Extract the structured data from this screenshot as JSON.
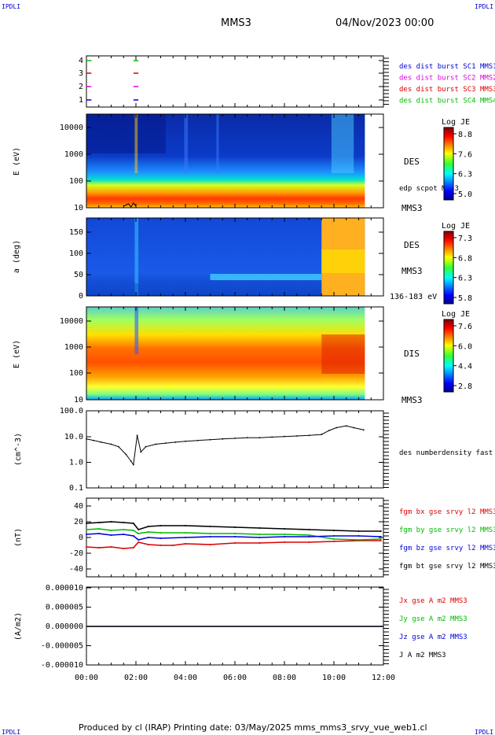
{
  "header": {
    "corner_label": "IPDLI",
    "title": "MMS3",
    "datetime": "04/Nov/2023 00:00"
  },
  "footer": {
    "text": "Produced by cl (IRAP)   Printing date: 03/May/2025   mms_mms3_srvy_vue_web1.cl"
  },
  "colors": {
    "red": "#dd0000",
    "green": "#00bb00",
    "blue": "#0000dd",
    "magenta": "#dd00dd",
    "black": "#000000"
  },
  "chart_data": [
    {
      "type": "scatter",
      "panel": "burst-availability",
      "x_ticks": [
        "00:00",
        "02:00",
        "04:00",
        "06:00",
        "08:00",
        "10:00",
        "12:00"
      ],
      "y_ticks": [
        "1",
        "2",
        "3",
        "4"
      ],
      "legend": [
        {
          "name": "des dist burst SC1 MMS1",
          "color": "#0000dd"
        },
        {
          "name": "des dist burst SC2 MMS2",
          "color": "#dd00dd"
        },
        {
          "name": "des dist burst SC3 MMS3",
          "color": "#dd0000"
        },
        {
          "name": "des dist burst SC4 MMS4",
          "color": "#00bb00"
        }
      ],
      "marks": [
        {
          "x": [
            0.0,
            0.2
          ],
          "y": 4,
          "color": "#00bb00"
        },
        {
          "x": [
            1.9,
            2.1
          ],
          "y": 4,
          "color": "#00bb00"
        },
        {
          "x": [
            0.0,
            0.2
          ],
          "y": 3,
          "color": "#dd0000"
        },
        {
          "x": [
            1.9,
            2.1
          ],
          "y": 3,
          "color": "#dd0000"
        },
        {
          "x": [
            0.0,
            0.2
          ],
          "y": 2,
          "color": "#dd00dd"
        },
        {
          "x": [
            1.9,
            2.1
          ],
          "y": 2,
          "color": "#dd00dd"
        },
        {
          "x": [
            0.0,
            0.2
          ],
          "y": 1,
          "color": "#0000dd"
        },
        {
          "x": [
            1.9,
            2.1
          ],
          "y": 1,
          "color": "#0000dd"
        }
      ]
    },
    {
      "type": "heatmap",
      "panel": "des-energy",
      "ylabel": "E (eV)",
      "y_ticks": [
        "10",
        "100",
        "1000",
        "10000"
      ],
      "label_main": "DES",
      "label_overlay": "edp scpot MMS3",
      "label_sc": "MMS3",
      "colorbar": {
        "title": "Log JE",
        "ticks": [
          "8.8",
          "7.6",
          "6.3",
          "5.0"
        ]
      }
    },
    {
      "type": "heatmap",
      "panel": "des-pitch",
      "ylabel": "a (deg)",
      "y_ticks": [
        "0",
        "50",
        "100",
        "150"
      ],
      "label_main": "DES",
      "label_sc": "MMS3",
      "label_energy": "136-183 eV",
      "colorbar": {
        "title": "Log JE",
        "ticks": [
          "7.3",
          "6.8",
          "6.3",
          "5.8"
        ]
      }
    },
    {
      "type": "heatmap",
      "panel": "dis-energy",
      "ylabel": "E (eV)",
      "y_ticks": [
        "10",
        "100",
        "1000",
        "10000"
      ],
      "label_main": "DIS",
      "label_sc": "MMS3",
      "colorbar": {
        "title": "Log JE",
        "ticks": [
          "7.6",
          "6.0",
          "4.4",
          "2.8"
        ]
      }
    },
    {
      "type": "line",
      "panel": "density",
      "ylabel": "(cm^-3)",
      "y_ticks": [
        "0.1",
        "1.0",
        "10.0",
        "100.0"
      ],
      "ylim": [
        0.1,
        100
      ],
      "series": [
        {
          "name": "des numberdensity fast M",
          "color": "#000000",
          "x": [
            0.0,
            0.3,
            0.6,
            1.0,
            1.3,
            1.6,
            1.8,
            1.9,
            2.05,
            2.2,
            2.4,
            2.8,
            3.2,
            3.6,
            4.0,
            4.5,
            5.0,
            5.5,
            6.0,
            6.5,
            7.0,
            7.5,
            8.0,
            8.5,
            9.0,
            9.5,
            9.8,
            10.1,
            10.5,
            10.8,
            11.2
          ],
          "y": [
            8,
            7,
            6,
            5,
            4,
            2,
            1.1,
            0.8,
            11,
            2.5,
            4,
            5,
            5.5,
            6,
            6.5,
            7,
            7.5,
            8,
            8.5,
            9,
            9,
            9.5,
            10,
            10.5,
            11,
            12,
            17,
            22,
            26,
            22,
            18
          ]
        }
      ]
    },
    {
      "type": "line",
      "panel": "magnetic-field",
      "ylabel": "(nT)",
      "y_ticks": [
        "-40",
        "-20",
        "0",
        "20",
        "40"
      ],
      "ylim": [
        -50,
        50
      ],
      "series": [
        {
          "name": "fgm bx gse srvy l2 MMS3",
          "color": "#dd0000",
          "x": [
            0.0,
            0.5,
            1.0,
            1.5,
            1.9,
            2.1,
            2.5,
            3.0,
            3.5,
            4.0,
            5.0,
            6.0,
            7.0,
            8.0,
            9.0,
            10.0,
            11.0,
            11.9
          ],
          "y": [
            -12,
            -13,
            -12,
            -14,
            -13,
            -6,
            -9,
            -10,
            -10,
            -8,
            -9,
            -7,
            -7,
            -6,
            -6,
            -5,
            -4,
            -4
          ]
        },
        {
          "name": "fgm by gse srvy l2 MMS3",
          "color": "#00bb00",
          "x": [
            0.0,
            0.5,
            1.0,
            1.5,
            1.9,
            2.1,
            2.5,
            3.0,
            4.0,
            5.0,
            6.0,
            7.0,
            8.0,
            9.0,
            10.0,
            11.0,
            11.9
          ],
          "y": [
            10,
            11,
            9,
            10,
            9,
            5,
            7,
            6,
            6,
            5,
            5,
            4,
            4,
            3,
            -2,
            -3,
            -2
          ]
        },
        {
          "name": "fgm bz gse srvy l2 MMS3",
          "color": "#0000dd",
          "x": [
            0.0,
            0.5,
            1.0,
            1.5,
            1.9,
            2.1,
            2.5,
            3.0,
            4.0,
            5.0,
            6.0,
            7.0,
            8.0,
            9.0,
            10.0,
            11.0,
            11.9
          ],
          "y": [
            4,
            5,
            3,
            4,
            2,
            -3,
            0,
            -1,
            0,
            1,
            1,
            0,
            1,
            1,
            2,
            2,
            1
          ]
        },
        {
          "name": "fgm bt gse srvy l2 MMS3",
          "color": "#000000",
          "x": [
            0.0,
            0.5,
            1.0,
            1.5,
            1.9,
            2.1,
            2.5,
            3.0,
            4.0,
            5.0,
            6.0,
            7.0,
            8.0,
            9.0,
            10.0,
            11.0,
            11.9
          ],
          "y": [
            18,
            19,
            20,
            19,
            18,
            10,
            14,
            15,
            15,
            14,
            13,
            12,
            11,
            10,
            9,
            8,
            8
          ]
        }
      ]
    },
    {
      "type": "line",
      "panel": "current-density",
      "ylabel": "(A/m2)",
      "y_ticks": [
        "-0.000010",
        "-0.000005",
        "0.000000",
        "0.000005",
        "0.000010"
      ],
      "ylim": [
        -1e-05,
        1e-05
      ],
      "series": [
        {
          "name": "Jx gse A m2 MMS3",
          "color": "#dd0000",
          "x": [
            0.0,
            12.0
          ],
          "y": [
            0.0,
            0.0
          ]
        },
        {
          "name": "Jy gse A m2 MMS3",
          "color": "#00bb00",
          "x": [
            0.0,
            12.0
          ],
          "y": [
            0.0,
            0.0
          ]
        },
        {
          "name": "Jz gse A m2 MMS3",
          "color": "#0000dd",
          "x": [
            0.0,
            12.0
          ],
          "y": [
            0.0,
            0.0
          ]
        },
        {
          "name": "J A m2 MMS3",
          "color": "#000000",
          "x": [
            0.0,
            12.0
          ],
          "y": [
            0.0,
            0.0
          ]
        }
      ]
    }
  ],
  "time_axis": {
    "ticks": [
      "00:00",
      "02:00",
      "04:00",
      "06:00",
      "08:00",
      "10:00",
      "12:00"
    ]
  }
}
